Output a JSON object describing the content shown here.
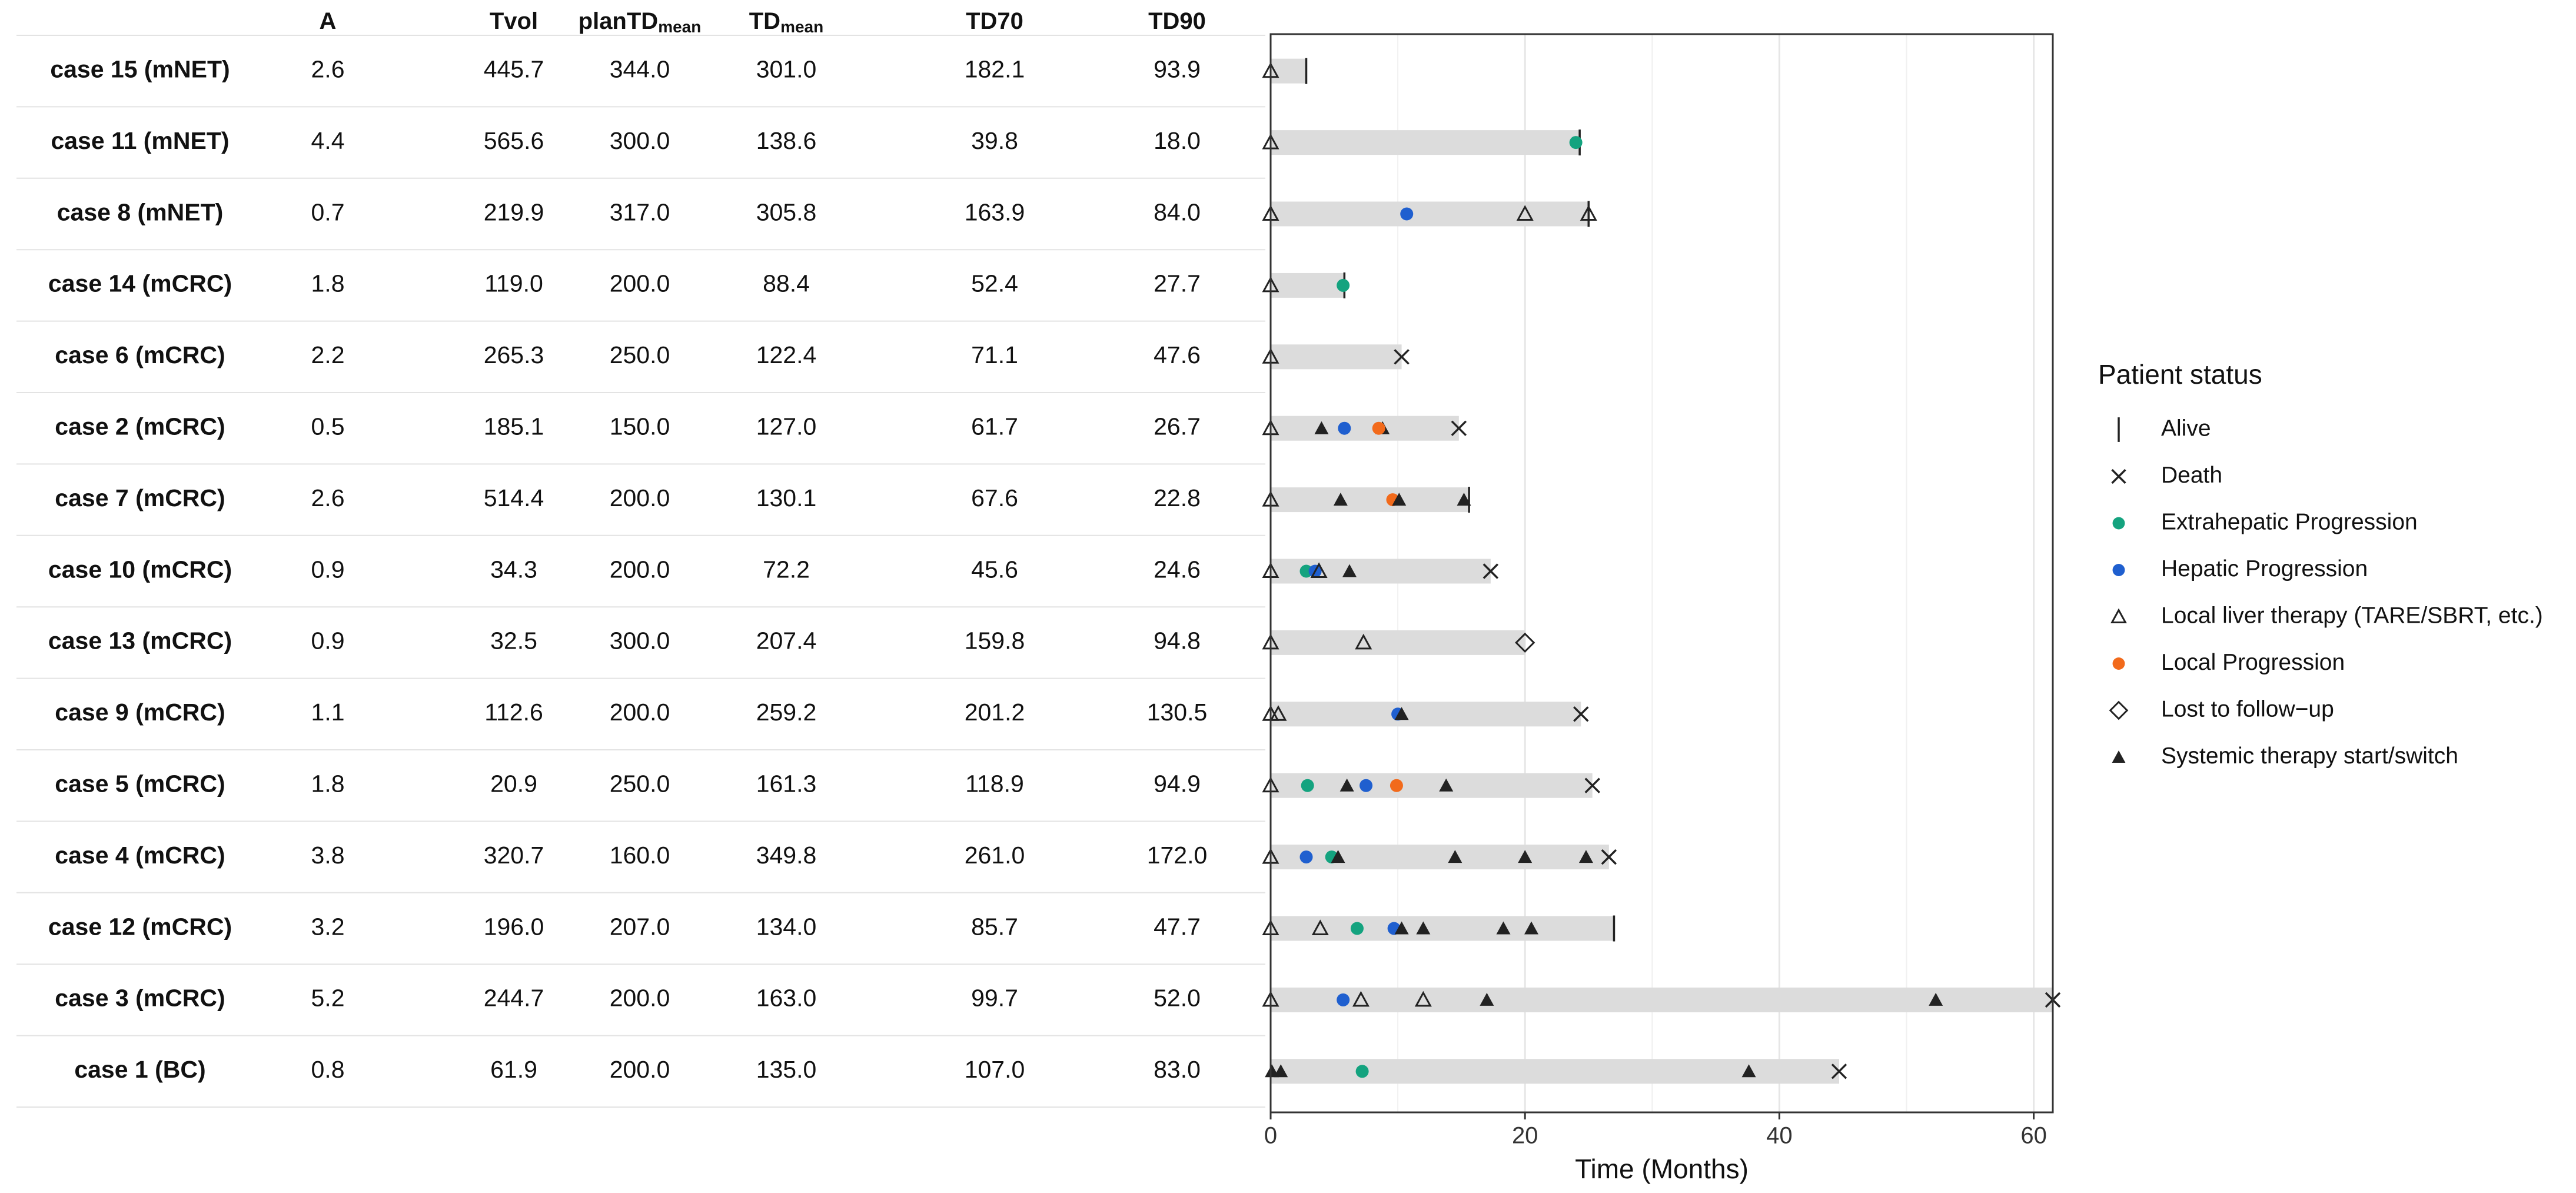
{
  "chart_data": {
    "type": "swimmer",
    "table": {
      "headers": [
        {
          "main": "A",
          "sub": ""
        },
        {
          "main": "Tvol",
          "sub": ""
        },
        {
          "main": "planTD",
          "sub": "mean"
        },
        {
          "main": "TD",
          "sub": "mean"
        },
        {
          "main": "TD70",
          "sub": ""
        },
        {
          "main": "TD90",
          "sub": ""
        }
      ],
      "rows": [
        {
          "case": "case 15 (mNET)",
          "values": [
            "2.6",
            "445.7",
            "344.0",
            "301.0",
            "182.1",
            "93.9"
          ]
        },
        {
          "case": "case 11 (mNET)",
          "values": [
            "4.4",
            "565.6",
            "300.0",
            "138.6",
            "39.8",
            "18.0"
          ]
        },
        {
          "case": "case 8 (mNET)",
          "values": [
            "0.7",
            "219.9",
            "317.0",
            "305.8",
            "163.9",
            "84.0"
          ]
        },
        {
          "case": "case 14 (mCRC)",
          "values": [
            "1.8",
            "119.0",
            "200.0",
            "88.4",
            "52.4",
            "27.7"
          ]
        },
        {
          "case": "case 6 (mCRC)",
          "values": [
            "2.2",
            "265.3",
            "250.0",
            "122.4",
            "71.1",
            "47.6"
          ]
        },
        {
          "case": "case 2 (mCRC)",
          "values": [
            "0.5",
            "185.1",
            "150.0",
            "127.0",
            "61.7",
            "26.7"
          ]
        },
        {
          "case": "case 7 (mCRC)",
          "values": [
            "2.6",
            "514.4",
            "200.0",
            "130.1",
            "67.6",
            "22.8"
          ]
        },
        {
          "case": "case 10 (mCRC)",
          "values": [
            "0.9",
            "34.3",
            "200.0",
            "72.2",
            "45.6",
            "24.6"
          ]
        },
        {
          "case": "case 13 (mCRC)",
          "values": [
            "0.9",
            "32.5",
            "300.0",
            "207.4",
            "159.8",
            "94.8"
          ]
        },
        {
          "case": "case 9 (mCRC)",
          "values": [
            "1.1",
            "112.6",
            "200.0",
            "259.2",
            "201.2",
            "130.5"
          ]
        },
        {
          "case": "case 5 (mCRC)",
          "values": [
            "1.8",
            "20.9",
            "250.0",
            "161.3",
            "118.9",
            "94.9"
          ]
        },
        {
          "case": "case 4 (mCRC)",
          "values": [
            "3.8",
            "320.7",
            "160.0",
            "349.8",
            "261.0",
            "172.0"
          ]
        },
        {
          "case": "case 12 (mCRC)",
          "values": [
            "3.2",
            "196.0",
            "207.0",
            "134.0",
            "85.7",
            "47.7"
          ]
        },
        {
          "case": "case 3 (mCRC)",
          "values": [
            "5.2",
            "244.7",
            "200.0",
            "163.0",
            "99.7",
            "52.0"
          ]
        },
        {
          "case": "case 1 (BC)",
          "values": [
            "0.8",
            "61.9",
            "200.0",
            "135.0",
            "107.0",
            "83.0"
          ]
        }
      ]
    },
    "xlabel": "Time (Months)",
    "xlim": [
      0,
      61.5
    ],
    "xticks": [
      0,
      20,
      40,
      60
    ],
    "xticklabels": [
      "0",
      "20",
      "40",
      "60"
    ],
    "grid": true,
    "legend": {
      "title": "Patient status",
      "position": "right",
      "entries": [
        {
          "key": "alive",
          "label": "Alive"
        },
        {
          "key": "death",
          "label": "Death"
        },
        {
          "key": "extra",
          "label": "Extrahepatic Progression"
        },
        {
          "key": "hepatic",
          "label": "Hepatic Progression"
        },
        {
          "key": "local_therapy",
          "label": "Local liver therapy (TARE/SBRT, etc.)"
        },
        {
          "key": "local_prog",
          "label": "Local Progression"
        },
        {
          "key": "lost",
          "label": "Lost to follow−up"
        },
        {
          "key": "systemic",
          "label": "Systemic therapy start/switch"
        }
      ]
    },
    "colors": {
      "bar": "#dcdcdc",
      "extra": "#14a37f",
      "hepatic": "#1f5fcf",
      "local_prog": "#f26a1b",
      "marker": "#222222",
      "grid": "#e6e6e6"
    },
    "series": [
      {
        "case": "case 15 (mNET)",
        "duration": 2.8,
        "events": [
          {
            "t": 0,
            "type": "local_therapy"
          },
          {
            "t": 2.8,
            "type": "alive"
          }
        ]
      },
      {
        "case": "case 11 (mNET)",
        "duration": 24.3,
        "events": [
          {
            "t": 0,
            "type": "local_therapy"
          },
          {
            "t": 24.3,
            "type": "alive"
          },
          {
            "t": 24.0,
            "type": "extra"
          }
        ]
      },
      {
        "case": "case 8 (mNET)",
        "duration": 25.0,
        "events": [
          {
            "t": 0,
            "type": "local_therapy"
          },
          {
            "t": 10.7,
            "type": "hepatic"
          },
          {
            "t": 20.0,
            "type": "local_therapy"
          },
          {
            "t": 25.0,
            "type": "local_therapy"
          },
          {
            "t": 25.0,
            "type": "alive"
          }
        ]
      },
      {
        "case": "case 14 (mCRC)",
        "duration": 5.8,
        "events": [
          {
            "t": 0,
            "type": "local_therapy"
          },
          {
            "t": 5.8,
            "type": "alive"
          },
          {
            "t": 5.7,
            "type": "extra"
          }
        ]
      },
      {
        "case": "case 6 (mCRC)",
        "duration": 10.3,
        "events": [
          {
            "t": 0,
            "type": "local_therapy"
          },
          {
            "t": 10.3,
            "type": "death"
          }
        ]
      },
      {
        "case": "case 2 (mCRC)",
        "duration": 14.8,
        "events": [
          {
            "t": 0,
            "type": "local_therapy"
          },
          {
            "t": 4.0,
            "type": "systemic"
          },
          {
            "t": 5.8,
            "type": "hepatic"
          },
          {
            "t": 8.8,
            "type": "systemic"
          },
          {
            "t": 8.5,
            "type": "local_prog"
          },
          {
            "t": 14.8,
            "type": "death"
          }
        ]
      },
      {
        "case": "case 7 (mCRC)",
        "duration": 15.6,
        "events": [
          {
            "t": 0,
            "type": "local_therapy"
          },
          {
            "t": 5.5,
            "type": "systemic"
          },
          {
            "t": 9.6,
            "type": "local_prog"
          },
          {
            "t": 10.1,
            "type": "systemic"
          },
          {
            "t": 15.2,
            "type": "systemic"
          },
          {
            "t": 15.6,
            "type": "alive"
          }
        ]
      },
      {
        "case": "case 10 (mCRC)",
        "duration": 17.3,
        "events": [
          {
            "t": 0,
            "type": "local_therapy"
          },
          {
            "t": 2.8,
            "type": "extra"
          },
          {
            "t": 3.5,
            "type": "hepatic"
          },
          {
            "t": 3.8,
            "type": "local_therapy"
          },
          {
            "t": 6.2,
            "type": "systemic"
          },
          {
            "t": 17.3,
            "type": "death"
          }
        ]
      },
      {
        "case": "case 13 (mCRC)",
        "duration": 20.0,
        "events": [
          {
            "t": 0,
            "type": "local_therapy"
          },
          {
            "t": 7.3,
            "type": "local_therapy"
          },
          {
            "t": 20.0,
            "type": "lost"
          }
        ]
      },
      {
        "case": "case 9 (mCRC)",
        "duration": 24.4,
        "events": [
          {
            "t": 0,
            "type": "local_therapy"
          },
          {
            "t": 0.6,
            "type": "local_therapy"
          },
          {
            "t": 10.0,
            "type": "hepatic"
          },
          {
            "t": 10.3,
            "type": "systemic"
          },
          {
            "t": 24.4,
            "type": "death"
          }
        ]
      },
      {
        "case": "case 5 (mCRC)",
        "duration": 25.3,
        "events": [
          {
            "t": 0,
            "type": "local_therapy"
          },
          {
            "t": 2.9,
            "type": "extra"
          },
          {
            "t": 6.0,
            "type": "systemic"
          },
          {
            "t": 7.5,
            "type": "hepatic"
          },
          {
            "t": 9.9,
            "type": "local_prog"
          },
          {
            "t": 13.8,
            "type": "systemic"
          },
          {
            "t": 25.3,
            "type": "death"
          }
        ]
      },
      {
        "case": "case 4 (mCRC)",
        "duration": 26.6,
        "events": [
          {
            "t": 0,
            "type": "local_therapy"
          },
          {
            "t": 2.8,
            "type": "hepatic"
          },
          {
            "t": 4.8,
            "type": "extra"
          },
          {
            "t": 5.3,
            "type": "systemic"
          },
          {
            "t": 14.5,
            "type": "systemic"
          },
          {
            "t": 20.0,
            "type": "systemic"
          },
          {
            "t": 24.8,
            "type": "systemic"
          },
          {
            "t": 26.6,
            "type": "death"
          }
        ]
      },
      {
        "case": "case 12 (mCRC)",
        "duration": 27.0,
        "events": [
          {
            "t": 0,
            "type": "local_therapy"
          },
          {
            "t": 3.9,
            "type": "local_therapy"
          },
          {
            "t": 6.8,
            "type": "extra"
          },
          {
            "t": 9.7,
            "type": "hepatic"
          },
          {
            "t": 10.3,
            "type": "systemic"
          },
          {
            "t": 12.0,
            "type": "systemic"
          },
          {
            "t": 18.3,
            "type": "systemic"
          },
          {
            "t": 20.5,
            "type": "systemic"
          },
          {
            "t": 27.0,
            "type": "alive"
          }
        ]
      },
      {
        "case": "case 3 (mCRC)",
        "duration": 61.5,
        "events": [
          {
            "t": 0,
            "type": "local_therapy"
          },
          {
            "t": 5.7,
            "type": "hepatic"
          },
          {
            "t": 7.1,
            "type": "local_therapy"
          },
          {
            "t": 12.0,
            "type": "local_therapy"
          },
          {
            "t": 17.0,
            "type": "systemic"
          },
          {
            "t": 52.3,
            "type": "systemic"
          },
          {
            "t": 61.5,
            "type": "death"
          }
        ]
      },
      {
        "case": "case 1 (BC)",
        "duration": 44.7,
        "events": [
          {
            "t": 0.1,
            "type": "systemic"
          },
          {
            "t": 0.8,
            "type": "systemic"
          },
          {
            "t": 7.2,
            "type": "extra"
          },
          {
            "t": 37.6,
            "type": "systemic"
          },
          {
            "t": 44.7,
            "type": "death"
          }
        ]
      }
    ]
  }
}
